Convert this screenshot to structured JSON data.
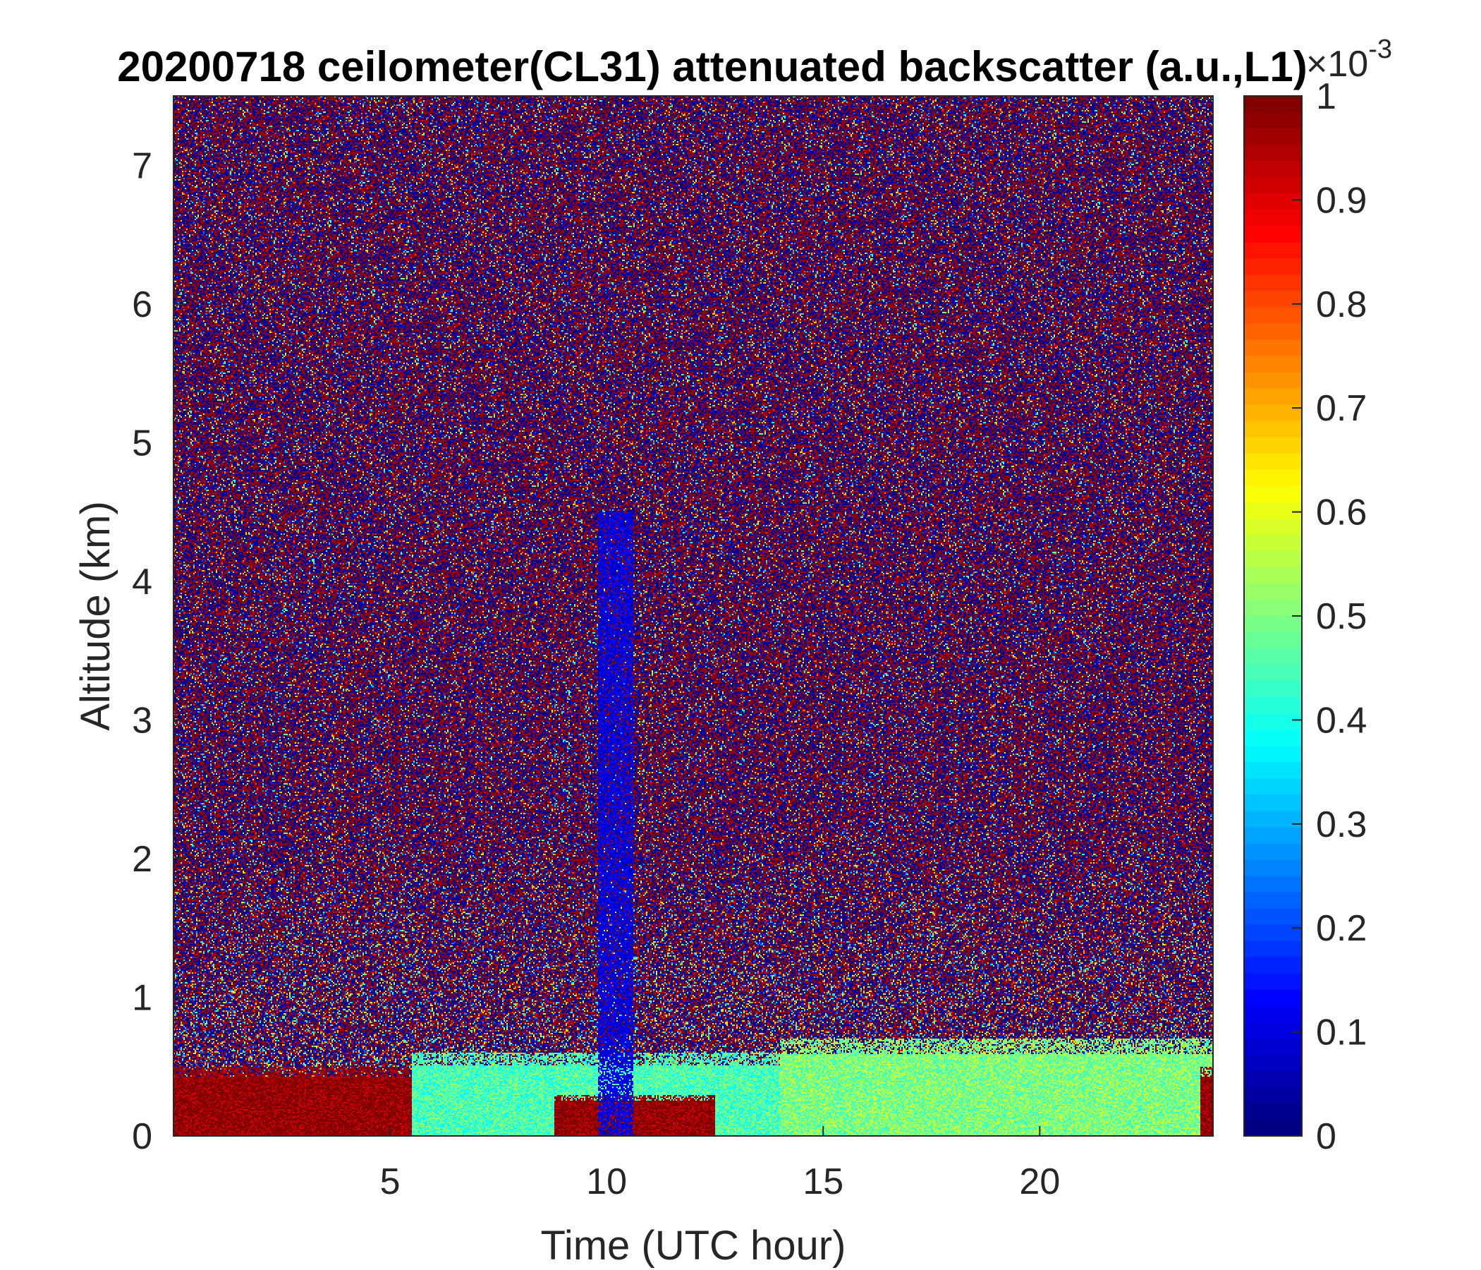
{
  "chart_data": {
    "type": "heatmap",
    "title": "20200718 ceilometer(CL31) attenuated backscatter (a.u.,L1)",
    "xlabel": "Time (UTC hour)",
    "ylabel": "Altitude (km)",
    "xlim": [
      0,
      24
    ],
    "ylim": [
      0,
      7.5
    ],
    "xticks": [
      5,
      10,
      15,
      20
    ],
    "yticks": [
      0,
      1,
      2,
      3,
      4,
      5,
      6,
      7
    ],
    "colorbar": {
      "colormap": "jet",
      "clim": [
        0,
        1
      ],
      "ticks": [
        0,
        0.1,
        0.2,
        0.3,
        0.4,
        0.5,
        0.6,
        0.7,
        0.8,
        0.9,
        1
      ],
      "exponent_label": "×10",
      "exponent_power": "-3"
    },
    "features": [
      {
        "description": "strong backscatter layer",
        "time_start": 0,
        "time_end": 5.5,
        "altitude_top_km": 0.5,
        "value": 1.0
      },
      {
        "description": "aerosol layer",
        "time_start": 5.5,
        "time_end": 14,
        "altitude_top_km": 0.6,
        "value": 0.45
      },
      {
        "description": "strong backscatter layer",
        "time_start": 8.8,
        "time_end": 12.5,
        "altitude_top_km": 0.3,
        "value": 1.0
      },
      {
        "description": "weak signal column",
        "time_start": 9.8,
        "time_end": 10.6,
        "altitude_top_km": 4.5,
        "value": 0.05
      },
      {
        "description": "aerosol layer",
        "time_start": 14,
        "time_end": 24,
        "altitude_top_km": 0.7,
        "value": 0.5
      },
      {
        "description": "strong backscatter layer",
        "time_start": 23.7,
        "time_end": 24,
        "altitude_top_km": 0.5,
        "value": 1.0
      },
      {
        "description": "noisy signal aloft",
        "time_start": 0,
        "time_end": 24,
        "altitude_top_km": 7.5,
        "value": "random 0-1"
      }
    ]
  },
  "colors": {
    "axis": "#262626",
    "background": "#ffffff",
    "jet_low": "#00008f",
    "jet_high": "#800000"
  }
}
